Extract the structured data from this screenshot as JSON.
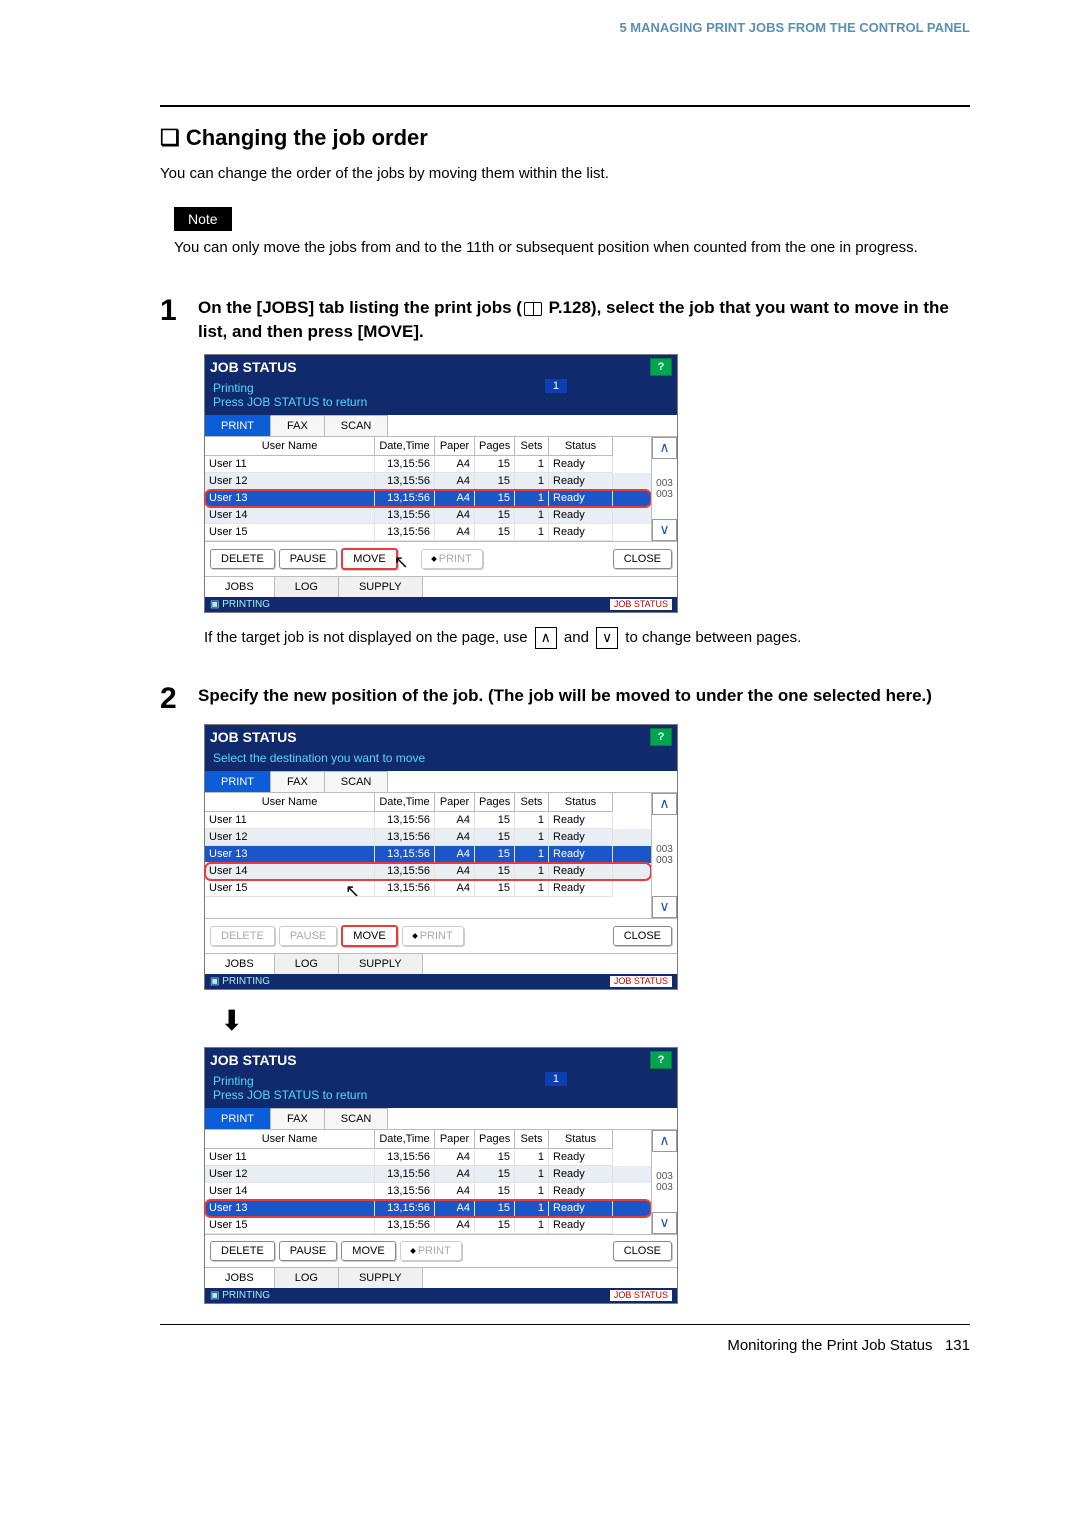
{
  "header": "5 MANAGING PRINT JOBS FROM THE CONTROL PANEL",
  "chapter": "5",
  "section_title": "Changing the job order",
  "intro": "You can change the order of the jobs by moving them within the list.",
  "note_label": "Note",
  "note_text": "You can only move the jobs from and to the 11th or subsequent position when counted from the one in progress.",
  "step1_num": "1",
  "step1_text_a": "On the [JOBS] tab listing the print jobs (",
  "step1_text_b": " P.128), select the job that you want to move in the list, and then press [MOVE].",
  "step2_num": "2",
  "step2_text": "Specify the new position of the job. (The job will be moved to under the one selected here.)",
  "below_panel1": {
    "pre": "If the target job is not displayed on the page, use ",
    "mid": " and ",
    "post": " to change between pages."
  },
  "panel": {
    "title": "JOB STATUS",
    "help": "?",
    "sub1_line1": "Printing",
    "sub1_line2": "Press JOB STATUS to return",
    "sub_badge": "1",
    "sub2": "Select the destination you want to move",
    "tabs": {
      "print": "PRINT",
      "fax": "FAX",
      "scan": "SCAN"
    },
    "cols": {
      "user": "User Name",
      "date": "Date,Time",
      "paper": "Paper",
      "pages": "Pages",
      "sets": "Sets",
      "status": "Status"
    },
    "rows1": [
      {
        "u": "User 11",
        "d": "13,15:56",
        "p": "A4",
        "pg": "15",
        "s": "1",
        "st": "Ready",
        "alt": false,
        "sel": false,
        "hl": false
      },
      {
        "u": "User 12",
        "d": "13,15:56",
        "p": "A4",
        "pg": "15",
        "s": "1",
        "st": "Ready",
        "alt": true,
        "sel": false,
        "hl": false
      },
      {
        "u": "User 13",
        "d": "13,15:56",
        "p": "A4",
        "pg": "15",
        "s": "1",
        "st": "Ready",
        "alt": false,
        "sel": true,
        "hl": true
      },
      {
        "u": "User 14",
        "d": "13,15:56",
        "p": "A4",
        "pg": "15",
        "s": "1",
        "st": "Ready",
        "alt": true,
        "sel": false,
        "hl": false
      },
      {
        "u": "User 15",
        "d": "13,15:56",
        "p": "A4",
        "pg": "15",
        "s": "1",
        "st": "Ready",
        "alt": false,
        "sel": false,
        "hl": false
      }
    ],
    "rows2": [
      {
        "u": "User 11",
        "d": "13,15:56",
        "p": "A4",
        "pg": "15",
        "s": "1",
        "st": "Ready",
        "alt": false,
        "sel": false,
        "hl": false
      },
      {
        "u": "User 12",
        "d": "13,15:56",
        "p": "A4",
        "pg": "15",
        "s": "1",
        "st": "Ready",
        "alt": true,
        "sel": false,
        "hl": false
      },
      {
        "u": "User 13",
        "d": "13,15:56",
        "p": "A4",
        "pg": "15",
        "s": "1",
        "st": "Ready",
        "alt": false,
        "sel": true,
        "hl": false
      },
      {
        "u": "User 14",
        "d": "13,15:56",
        "p": "A4",
        "pg": "15",
        "s": "1",
        "st": "Ready",
        "alt": true,
        "sel": false,
        "hl": true
      },
      {
        "u": "User 15",
        "d": "13,15:56",
        "p": "A4",
        "pg": "15",
        "s": "1",
        "st": "Ready",
        "alt": false,
        "sel": false,
        "hl": false
      }
    ],
    "rows3": [
      {
        "u": "User 11",
        "d": "13,15:56",
        "p": "A4",
        "pg": "15",
        "s": "1",
        "st": "Ready",
        "alt": false,
        "sel": false,
        "hl": false
      },
      {
        "u": "User 12",
        "d": "13,15:56",
        "p": "A4",
        "pg": "15",
        "s": "1",
        "st": "Ready",
        "alt": true,
        "sel": false,
        "hl": false
      },
      {
        "u": "User 14",
        "d": "13,15:56",
        "p": "A4",
        "pg": "15",
        "s": "1",
        "st": "Ready",
        "alt": false,
        "sel": false,
        "hl": false
      },
      {
        "u": "User 13",
        "d": "13,15:56",
        "p": "A4",
        "pg": "15",
        "s": "1",
        "st": "Ready",
        "alt": true,
        "sel": true,
        "hl": true
      },
      {
        "u": "User 15",
        "d": "13,15:56",
        "p": "A4",
        "pg": "15",
        "s": "1",
        "st": "Ready",
        "alt": false,
        "sel": false,
        "hl": false
      }
    ],
    "scroll_label": "003\n003",
    "actions": {
      "delete": "DELETE",
      "pause": "PAUSE",
      "move": "MOVE",
      "print": "PRINT",
      "close": "CLOSE"
    },
    "btabs": {
      "jobs": "JOBS",
      "log": "LOG",
      "supply": "SUPPLY"
    },
    "strip_left": "PRINTING",
    "strip_right": "JOB STATUS"
  },
  "footer": {
    "text": "Monitoring the Print Job Status",
    "page": "131"
  },
  "arrows": {
    "up": "∧",
    "down": "∨"
  }
}
